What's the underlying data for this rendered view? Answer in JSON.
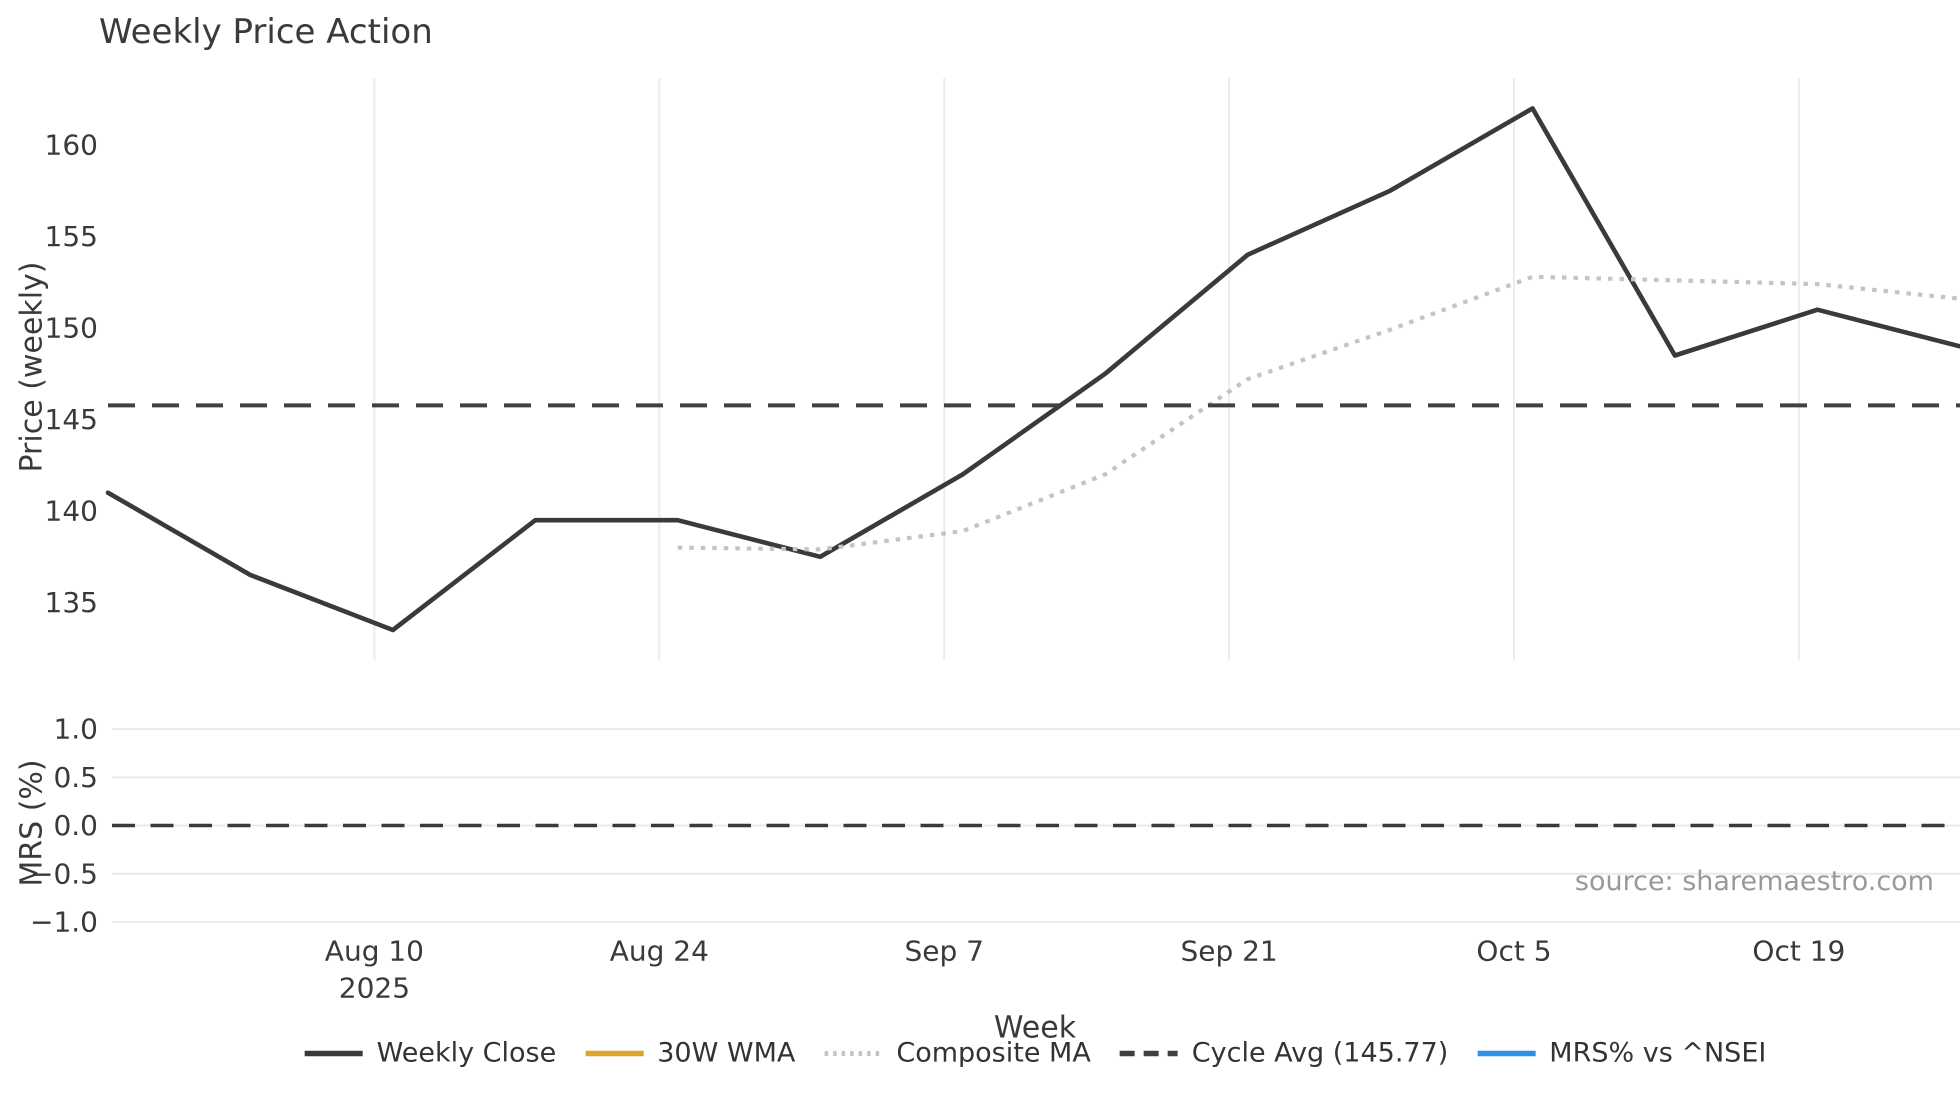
{
  "title": "Weekly Price Action",
  "source": "source: sharemaestro.com",
  "axes": {
    "price": {
      "label": "Price (weekly)",
      "tick_labels": [
        "160",
        "155",
        "150",
        "145",
        "140",
        "135"
      ],
      "tick_values": [
        160,
        155,
        150,
        145,
        140,
        135
      ],
      "ylim": [
        132.0,
        163.7
      ],
      "grid": "x"
    },
    "mrs": {
      "label": "MRS (%)",
      "tick_labels": [
        "1.0",
        "0.5",
        "0.0",
        "−0.5",
        "−1.0"
      ],
      "tick_values": [
        1.0,
        0.5,
        0.0,
        -0.5,
        -1.0
      ],
      "ylim": [
        -1.24,
        1.15
      ],
      "grid": "y",
      "zero_line": 0.0
    },
    "x": {
      "label": "Week",
      "tick_labels": [
        {
          "line1": "Aug 10",
          "line2": "2025"
        },
        {
          "line1": "Aug 24"
        },
        {
          "line1": "Sep 7"
        },
        {
          "line1": "Sep 21"
        },
        {
          "line1": "Oct 5"
        },
        {
          "line1": "Oct 19"
        }
      ],
      "tick_week_index": [
        2,
        4,
        6,
        8,
        10,
        12
      ]
    }
  },
  "legend": [
    {
      "label": "Weekly Close",
      "color": "#3a3a3a",
      "style": "solid"
    },
    {
      "label": "30W WMA",
      "color": "#d9a62a",
      "style": "solid"
    },
    {
      "label": "Composite MA",
      "color": "#c4c4c4",
      "style": "dotted"
    },
    {
      "label": "Cycle Avg (145.77)",
      "color": "#404040",
      "style": "dashed"
    },
    {
      "label": "MRS% vs ^NSEI",
      "color": "#2d8fe8",
      "style": "solid"
    }
  ],
  "chart_data": [
    {
      "type": "line",
      "panel": "price",
      "title": "Weekly Price Action",
      "xlabel": "Week",
      "ylabel": "Price (weekly)",
      "x_weeks": [
        "Jul 27",
        "Aug 3",
        "Aug 10",
        "Aug 17",
        "Aug 24",
        "Aug 31",
        "Sep 7",
        "Sep 14",
        "Sep 21",
        "Sep 28",
        "Oct 5",
        "Oct 12",
        "Oct 19",
        "Oct 26"
      ],
      "year": "2025",
      "ylim": [
        132.0,
        163.7
      ],
      "grid": "x",
      "legend_position": "bottom",
      "series": [
        {
          "name": "Weekly Close",
          "style": "solid",
          "color": "#3a3a3a",
          "values": [
            141.0,
            136.5,
            133.5,
            139.5,
            139.5,
            137.5,
            142.0,
            147.5,
            154.0,
            157.5,
            162.0,
            148.5,
            151.0,
            149.0
          ]
        },
        {
          "name": "Composite MA",
          "style": "dotted",
          "color": "#c4c4c4",
          "values": [
            null,
            null,
            null,
            null,
            138.0,
            137.9,
            138.9,
            142.0,
            147.2,
            149.9,
            152.8,
            152.6,
            152.4,
            151.6
          ]
        },
        {
          "name": "30W WMA",
          "style": "solid",
          "color": "#d9a62a",
          "values": [
            null,
            null,
            null,
            null,
            null,
            null,
            null,
            null,
            null,
            null,
            null,
            null,
            null,
            null
          ]
        },
        {
          "name": "Cycle Avg (145.77)",
          "style": "dashed",
          "color": "#404040",
          "constant": 145.77
        }
      ]
    },
    {
      "type": "line",
      "panel": "mrs",
      "ylabel": "MRS (%)",
      "ylim": [
        -1.24,
        1.15
      ],
      "grid": "y",
      "zero_line": 0.0,
      "series": [
        {
          "name": "MRS% vs ^NSEI",
          "style": "solid",
          "color": "#2d8fe8",
          "values": [
            null,
            null,
            null,
            null,
            null,
            null,
            null,
            null,
            null,
            null,
            null,
            null,
            null,
            null
          ],
          "note": "no visible curve; only dashed zero reference line shown"
        }
      ]
    }
  ],
  "style": {
    "background": "#ffffff",
    "text": "#3a3a3a",
    "muted_text": "#98999b",
    "line_dark": "#3a3a3a",
    "dotted_gray": "#c4c4c4",
    "dashed_dark": "#404040",
    "accent_gold": "#d9a62a",
    "accent_blue": "#2d8fe8",
    "grid_vertical": "#ececec",
    "grid_horizontal": "#e9e9f1"
  }
}
